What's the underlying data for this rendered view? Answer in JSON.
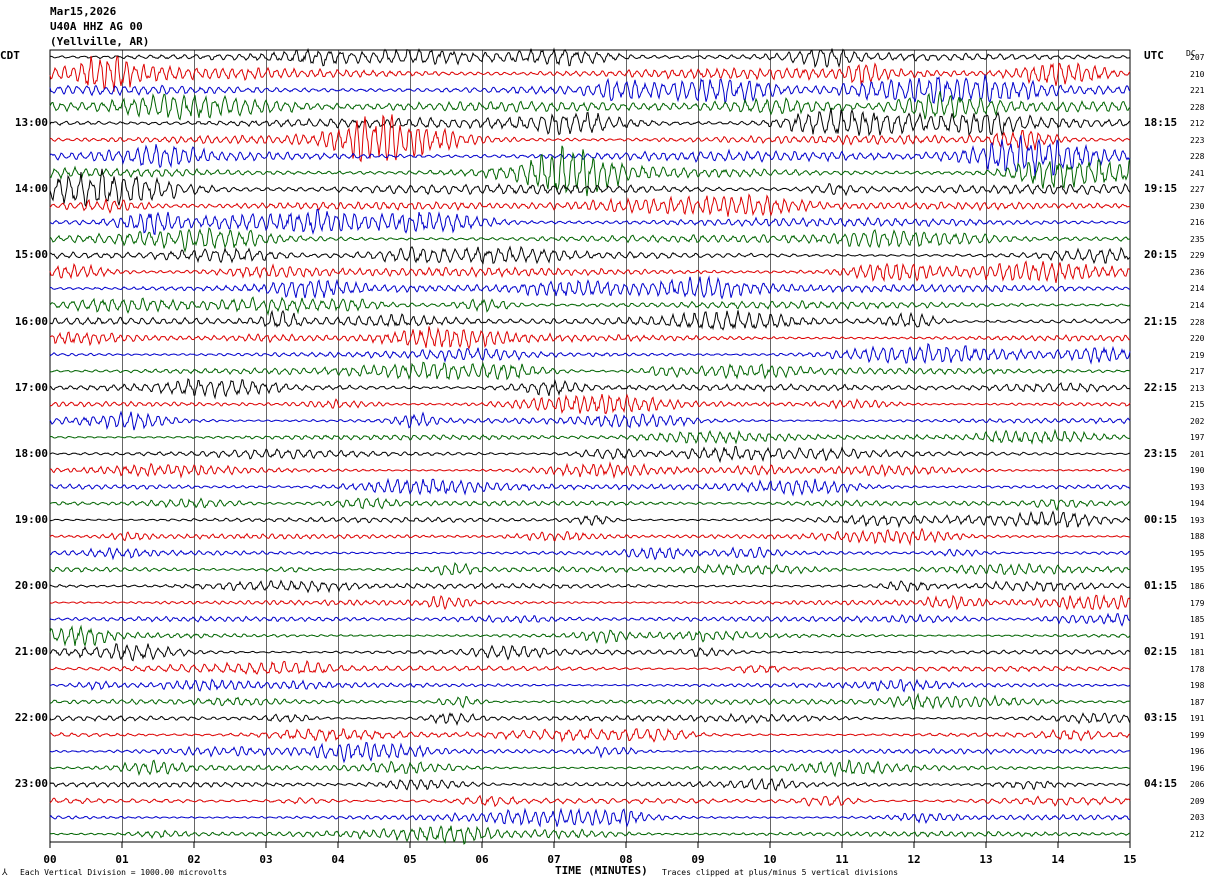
{
  "header": {
    "date": "Mar15,2026",
    "station": "U40A HHZ AG 00",
    "location": "(Yellville, AR)"
  },
  "left_tz": "CDT",
  "right_tz": "UTC",
  "dc_header": "DC",
  "footer": {
    "scale_note": "Each Vertical Division = 1000.00 microvolts",
    "xlabel": "TIME (MINUTES)",
    "clip_note": "Traces clipped at plus/minus 5 vertical divisions"
  },
  "colors": {
    "cycle": [
      "#000000",
      "#dd0000",
      "#0000cc",
      "#006400"
    ]
  },
  "chart_data": {
    "type": "line",
    "title": "",
    "xlabel": "TIME (MINUTES)",
    "ylabel": "",
    "xlim": [
      0,
      15
    ],
    "x_ticks": [
      "00",
      "01",
      "02",
      "03",
      "04",
      "05",
      "06",
      "07",
      "08",
      "09",
      "10",
      "11",
      "12",
      "13",
      "14",
      "15"
    ],
    "grid": true,
    "left_time_labels": [
      "13:00",
      "14:00",
      "15:00",
      "16:00",
      "17:00",
      "18:00",
      "19:00",
      "20:00",
      "21:00",
      "22:00",
      "23:00"
    ],
    "right_time_labels": [
      "18:15",
      "19:15",
      "20:15",
      "21:15",
      "22:15",
      "23:15",
      "00:15",
      "01:15",
      "02:15",
      "03:15",
      "04:15"
    ],
    "trace_dc": [
      207,
      210,
      221,
      228,
      212,
      223,
      228,
      241,
      227,
      230,
      216,
      235,
      229,
      236,
      214,
      214,
      228,
      220,
      219,
      217,
      213,
      215,
      202,
      197,
      201,
      190,
      193,
      194,
      193,
      188,
      195,
      195,
      186,
      179,
      185,
      191,
      181,
      178,
      198,
      187,
      191,
      199,
      196,
      196,
      206,
      209,
      203,
      212
    ],
    "trace_amplitude": [
      0.6,
      0.9,
      0.8,
      0.8,
      0.8,
      0.7,
      0.8,
      0.8,
      0.8,
      0.6,
      0.7,
      0.6,
      0.5,
      0.7,
      0.6,
      0.6,
      0.6,
      0.5,
      0.5,
      0.5,
      0.5,
      0.4,
      0.4,
      0.4,
      0.4,
      0.4,
      0.4,
      0.4,
      0.4,
      0.4,
      0.4,
      0.4,
      0.4,
      0.4,
      0.4,
      0.4,
      0.4,
      0.4,
      0.4,
      0.4,
      0.4,
      0.4,
      0.4,
      0.4,
      0.4,
      0.4,
      0.4,
      0.4
    ]
  }
}
